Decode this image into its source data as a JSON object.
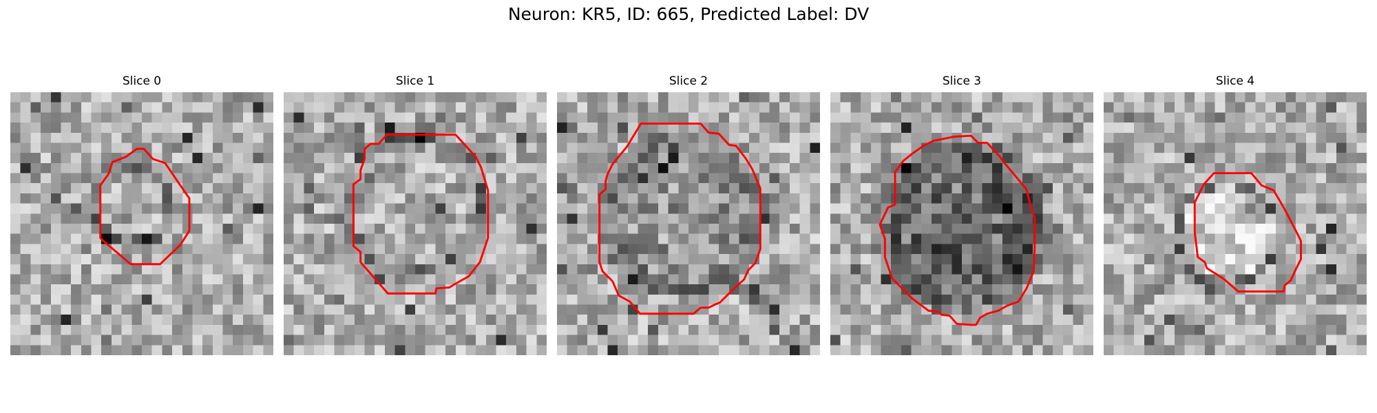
{
  "figure": {
    "title": "Neuron: KR5, ID: 665, Predicted Label: DV"
  },
  "panels": [
    {
      "title": "Slice 0"
    },
    {
      "title": "Slice 1"
    },
    {
      "title": "Slice 2"
    },
    {
      "title": "Slice 3"
    },
    {
      "title": "Slice 4"
    }
  ],
  "colors": {
    "contour": "#ff0000",
    "background": "#ffffff"
  },
  "image": {
    "colormap": "grayscale",
    "grid_cells": 26
  }
}
